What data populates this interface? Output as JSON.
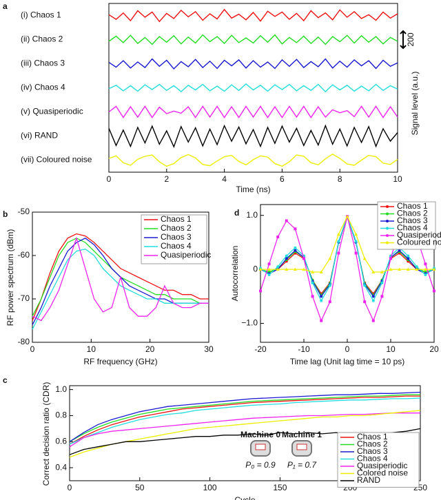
{
  "chart_data": [
    {
      "label": "a",
      "type": "line",
      "row_layout": true,
      "xlabel": "Time (ns)",
      "ylabel": "Signal level (a.u.)",
      "scale_bar": 200,
      "xlim": [
        0,
        10
      ],
      "xticks": [
        0,
        2,
        4,
        6,
        8,
        10
      ],
      "x": [
        0,
        0.25,
        0.5,
        0.75,
        1,
        1.25,
        1.5,
        1.75,
        2,
        2.25,
        2.5,
        2.75,
        3,
        3.25,
        3.5,
        3.75,
        4,
        4.25,
        4.5,
        4.75,
        5,
        5.25,
        5.5,
        5.75,
        6,
        6.25,
        6.5,
        6.75,
        7,
        7.25,
        7.5,
        7.75,
        8,
        8.25,
        8.5,
        8.75,
        9,
        9.25,
        9.5,
        9.75,
        10
      ],
      "series": [
        {
          "name": "(i) Chaos 1",
          "color": "#ee1111",
          "values": [
            10,
            -45,
            30,
            -60,
            55,
            -20,
            40,
            -70,
            25,
            -35,
            60,
            -15,
            45,
            -55,
            20,
            -40,
            70,
            -30,
            15,
            -50,
            35,
            -65,
            50,
            -10,
            40,
            -45,
            25,
            -60,
            55,
            -25,
            30,
            -50,
            65,
            -20,
            45,
            -35,
            10,
            -55,
            40,
            -30,
            20
          ]
        },
        {
          "name": "(ii) Chaos 2",
          "color": "#22dd22",
          "values": [
            -20,
            40,
            -35,
            50,
            -45,
            25,
            -55,
            35,
            -30,
            45,
            -50,
            30,
            -40,
            55,
            -25,
            35,
            -45,
            50,
            -35,
            20,
            -40,
            45,
            -30,
            55,
            -50,
            25,
            -35,
            40,
            -45,
            30,
            -55,
            35,
            -25,
            50,
            -40,
            45,
            -30,
            35,
            -50,
            25,
            -20
          ]
        },
        {
          "name": "(iii) Chaos 3",
          "color": "#1a1ad0",
          "values": [
            15,
            -40,
            35,
            -50,
            20,
            -45,
            55,
            -30,
            40,
            -60,
            25,
            -35,
            50,
            -45,
            30,
            -55,
            40,
            -25,
            45,
            -50,
            35,
            -40,
            20,
            -55,
            45,
            -30,
            50,
            -45,
            25,
            -35,
            55,
            -50,
            30,
            -40,
            45,
            -25,
            35,
            -55,
            40,
            -30,
            10
          ]
        },
        {
          "name": "(iv) Chaos 4",
          "color": "#22dddd",
          "values": [
            -10,
            30,
            -35,
            25,
            -40,
            35,
            -20,
            40,
            -30,
            25,
            -45,
            30,
            -25,
            40,
            -35,
            20,
            -40,
            35,
            -30,
            45,
            -25,
            30,
            -40,
            35,
            -20,
            40,
            -35,
            25,
            -30,
            40,
            -45,
            35,
            -25,
            30,
            -40,
            20,
            -35,
            40,
            -30,
            25,
            -15
          ]
        },
        {
          "name": "(v) Quasiperiodic",
          "color": "#ee22ee",
          "values": [
            0,
            65,
            -65,
            60,
            -60,
            65,
            -65,
            55,
            -20,
            10,
            -15,
            60,
            -65,
            65,
            -60,
            65,
            -65,
            60,
            -65,
            65,
            -60,
            65,
            -65,
            60,
            -65,
            65,
            -60,
            65,
            -65,
            60,
            -60,
            25,
            -10,
            15,
            -55,
            65,
            -60,
            65,
            -65,
            60,
            -60
          ]
        },
        {
          "name": "(vi) RAND",
          "color": "#000000",
          "values": [
            90,
            -110,
            70,
            -120,
            100,
            -80,
            115,
            -95,
            60,
            -125,
            110,
            -70,
            95,
            -115,
            80,
            -100,
            120,
            -60,
            105,
            -90,
            75,
            -120,
            100,
            -85,
            115,
            -70,
            90,
            -110,
            65,
            -105,
            120,
            -95,
            80,
            -115,
            100,
            -75,
            110,
            -120,
            85,
            -60,
            40
          ]
        },
        {
          "name": "(vii) Coloured noise",
          "color": "#eeee00",
          "values": [
            20,
            50,
            -30,
            -60,
            10,
            45,
            60,
            -20,
            -70,
            -40,
            30,
            65,
            25,
            -50,
            -65,
            -10,
            40,
            55,
            -15,
            -55,
            5,
            50,
            35,
            -40,
            -70,
            -20,
            60,
            45,
            -30,
            -55,
            15,
            70,
            20,
            -45,
            -60,
            0,
            55,
            40,
            -35,
            -50,
            10
          ]
        }
      ]
    },
    {
      "label": "b",
      "type": "line",
      "xlabel": "RF frequency (GHz)",
      "ylabel": "RF power spectrum (dBm)",
      "legend": "upper right",
      "xlim": [
        0,
        30
      ],
      "xticks": [
        0,
        10,
        20,
        30
      ],
      "ylim": [
        -80,
        -50
      ],
      "yticks": [
        -80,
        -70,
        -60,
        -50
      ],
      "x": [
        0,
        1.5,
        3,
        4.5,
        6,
        7.5,
        9,
        10.5,
        12,
        13.5,
        15,
        16.5,
        18,
        19.5,
        21,
        22.5,
        24,
        25.5,
        27,
        28.5,
        30
      ],
      "series": [
        {
          "name": "Chaos 1",
          "color": "#ee1111",
          "values": [
            -75,
            -70,
            -64,
            -59,
            -56,
            -55,
            -55.5,
            -57,
            -59,
            -61,
            -63,
            -64,
            -65,
            -66,
            -67,
            -68,
            -68,
            -69,
            -69,
            -70,
            -70
          ]
        },
        {
          "name": "Chaos 2",
          "color": "#22dd22",
          "values": [
            -74,
            -70,
            -65,
            -60,
            -57,
            -56,
            -57,
            -59,
            -61,
            -63,
            -65,
            -66,
            -67,
            -68,
            -69,
            -69,
            -70,
            -70,
            -70,
            -71,
            -71
          ]
        },
        {
          "name": "Chaos 3",
          "color": "#1a1ad0",
          "values": [
            -76,
            -72,
            -67,
            -63,
            -59,
            -57,
            -56,
            -57.5,
            -60,
            -63,
            -65,
            -67,
            -68,
            -69,
            -70,
            -70,
            -71,
            -71,
            -71,
            -71,
            -71
          ]
        },
        {
          "name": "Chaos 4",
          "color": "#22dddd",
          "values": [
            -77,
            -73,
            -69,
            -65,
            -61,
            -59,
            -58.5,
            -60,
            -63,
            -65,
            -67,
            -68,
            -69,
            -70,
            -70,
            -71,
            -71,
            -71,
            -71,
            -71,
            -71
          ]
        },
        {
          "name": "Quasiperiodic",
          "color": "#ee22ee",
          "values": [
            -74,
            -75,
            -72,
            -68,
            -62,
            -56,
            -63,
            -70,
            -73,
            -72,
            -65,
            -72,
            -74,
            -74,
            -72,
            -67,
            -71,
            -72,
            -72,
            -71,
            -71
          ]
        }
      ]
    },
    {
      "label": "c",
      "type": "line",
      "xlabel": "Cycle",
      "ylabel": "Correct decision ratio (CDR)",
      "legend": "lower right",
      "xlim": [
        0,
        250
      ],
      "xticks": [
        0,
        50,
        100,
        150,
        200,
        250
      ],
      "ylim": [
        0.3,
        1.03
      ],
      "yticks": [
        0.4,
        0.6,
        0.8,
        {
          "value": 1,
          "label": "1.0"
        }
      ],
      "x": [
        0,
        10,
        20,
        30,
        40,
        50,
        60,
        70,
        80,
        90,
        100,
        110,
        120,
        130,
        140,
        150,
        160,
        170,
        180,
        190,
        200,
        210,
        220,
        230,
        240,
        250
      ],
      "series": [
        {
          "name": "Chaos 1",
          "color": "#ee1111",
          "values": [
            0.58,
            0.64,
            0.69,
            0.73,
            0.76,
            0.79,
            0.81,
            0.83,
            0.85,
            0.86,
            0.87,
            0.88,
            0.89,
            0.9,
            0.905,
            0.91,
            0.915,
            0.92,
            0.925,
            0.93,
            0.935,
            0.94,
            0.94,
            0.945,
            0.95,
            0.95
          ]
        },
        {
          "name": "Chaos 2",
          "color": "#22dd22",
          "values": [
            0.6,
            0.66,
            0.71,
            0.75,
            0.78,
            0.81,
            0.83,
            0.85,
            0.86,
            0.87,
            0.88,
            0.89,
            0.9,
            0.91,
            0.915,
            0.92,
            0.925,
            0.93,
            0.935,
            0.94,
            0.945,
            0.95,
            0.95,
            0.955,
            0.96,
            0.96
          ]
        },
        {
          "name": "Chaos 3",
          "color": "#1a1ad0",
          "values": [
            0.6,
            0.67,
            0.73,
            0.77,
            0.8,
            0.83,
            0.85,
            0.87,
            0.88,
            0.89,
            0.9,
            0.91,
            0.92,
            0.93,
            0.935,
            0.94,
            0.945,
            0.95,
            0.955,
            0.96,
            0.96,
            0.965,
            0.97,
            0.97,
            0.975,
            0.98
          ]
        },
        {
          "name": "Chaos 4",
          "color": "#22dddd",
          "values": [
            0.58,
            0.63,
            0.67,
            0.71,
            0.74,
            0.77,
            0.79,
            0.81,
            0.82,
            0.84,
            0.85,
            0.86,
            0.87,
            0.88,
            0.885,
            0.89,
            0.9,
            0.905,
            0.91,
            0.915,
            0.92,
            0.92,
            0.925,
            0.93,
            0.93,
            0.935
          ]
        },
        {
          "name": "Quasiperiodic",
          "color": "#ee22ee",
          "values": [
            0.56,
            0.63,
            0.66,
            0.68,
            0.69,
            0.7,
            0.71,
            0.72,
            0.73,
            0.74,
            0.75,
            0.76,
            0.77,
            0.78,
            0.785,
            0.79,
            0.795,
            0.8,
            0.8,
            0.805,
            0.81,
            0.81,
            0.815,
            0.82,
            0.82,
            0.82
          ]
        },
        {
          "name": "Colored noise",
          "color": "#eeee00",
          "values": [
            0.48,
            0.52,
            0.55,
            0.58,
            0.6,
            0.62,
            0.64,
            0.66,
            0.68,
            0.7,
            0.71,
            0.72,
            0.73,
            0.74,
            0.75,
            0.76,
            0.77,
            0.78,
            0.79,
            0.79,
            0.8,
            0.8,
            0.81,
            0.82,
            0.83,
            0.84
          ]
        },
        {
          "name": "RAND",
          "color": "#000000",
          "values": [
            0.5,
            0.54,
            0.56,
            0.58,
            0.6,
            0.6,
            0.61,
            0.62,
            0.63,
            0.64,
            0.64,
            0.65,
            0.65,
            0.66,
            0.65,
            0.67,
            0.66,
            0.67,
            0.66,
            0.67,
            0.66,
            0.67,
            0.66,
            0.67,
            0.68,
            0.7
          ]
        }
      ],
      "annotations": [
        "Machine 0",
        "Machine 1",
        "P₀ = 0.9",
        "P₁ = 0.7"
      ]
    },
    {
      "label": "d",
      "type": "line",
      "markers": true,
      "xlabel": "Time lag (Unit lag time = 10 ps)",
      "ylabel": "Autocorrelation",
      "legend": "upper right",
      "xlim": [
        -20,
        20
      ],
      "xticks": [
        -20,
        -10,
        0,
        10,
        20
      ],
      "ylim": [
        -1.35,
        1.2
      ],
      "yticks": [
        {
          "value": -1,
          "label": "−1.0"
        },
        0,
        {
          "value": 1,
          "label": "1.0"
        }
      ],
      "x": [
        -20,
        -18,
        -16,
        -14,
        -12,
        -10,
        -8,
        -6,
        -4,
        -2,
        0,
        2,
        4,
        6,
        8,
        10,
        12,
        14,
        16,
        18,
        20
      ],
      "series": [
        {
          "name": "Chaos 1",
          "color": "#ee1111",
          "marker": "circle",
          "values": [
            0,
            -0.05,
            0,
            0.15,
            0.3,
            0.2,
            -0.2,
            -0.45,
            -0.25,
            0.5,
            0.98,
            0.5,
            -0.25,
            -0.45,
            -0.2,
            0.2,
            0.3,
            0.15,
            0,
            -0.05,
            0
          ]
        },
        {
          "name": "Chaos 2",
          "color": "#22dd22",
          "marker": "circle",
          "values": [
            0,
            -0.05,
            0.02,
            0.18,
            0.33,
            0.22,
            -0.2,
            -0.48,
            -0.26,
            0.5,
            0.98,
            0.5,
            -0.26,
            -0.48,
            -0.2,
            0.22,
            0.33,
            0.18,
            0.02,
            -0.05,
            0
          ]
        },
        {
          "name": "Chaos 3",
          "color": "#1a1ad0",
          "marker": "circle",
          "values": [
            0,
            -0.08,
            0,
            0.2,
            0.35,
            0.22,
            -0.22,
            -0.5,
            -0.28,
            0.5,
            0.98,
            0.5,
            -0.28,
            -0.5,
            -0.22,
            0.22,
            0.35,
            0.2,
            0,
            -0.08,
            0
          ]
        },
        {
          "name": "Chaos 4",
          "color": "#22dddd",
          "marker": "circle",
          "values": [
            0.02,
            -0.1,
            0.05,
            0.25,
            0.4,
            0.25,
            -0.25,
            -0.58,
            -0.3,
            0.52,
            0.98,
            0.52,
            -0.3,
            -0.58,
            -0.25,
            0.25,
            0.4,
            0.25,
            0.05,
            -0.1,
            0.02
          ]
        },
        {
          "name": "Quasiperiodic",
          "color": "#ee22ee",
          "marker": "square",
          "values": [
            -0.4,
            0.1,
            0.6,
            0.9,
            0.75,
            0.2,
            -0.5,
            -0.95,
            -0.6,
            0.3,
            0.98,
            0.3,
            -0.6,
            -0.95,
            -0.5,
            0.2,
            0.75,
            0.9,
            0.6,
            0.1,
            -0.4
          ]
        },
        {
          "name": "Coloured noise",
          "color": "#eeee00",
          "marker": "triangle",
          "values": [
            0,
            0,
            0,
            0,
            0,
            0,
            -0.05,
            -0.05,
            0.2,
            0.65,
            0.98,
            0.65,
            0.2,
            -0.05,
            -0.05,
            0,
            0,
            0,
            0,
            0,
            0
          ]
        }
      ]
    }
  ]
}
